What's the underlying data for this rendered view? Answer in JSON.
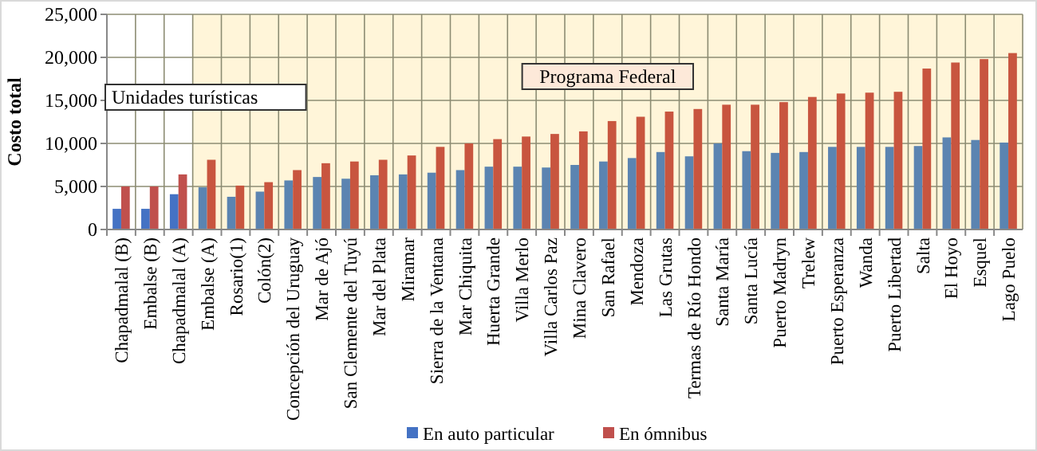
{
  "chart_data": {
    "type": "bar",
    "ylabel": "Costo total",
    "categories": [
      "Chapadmalal (B)",
      "Embalse (B)",
      "Chapadmalal (A)",
      "Embalse (A)",
      "Rosario(1)",
      "Colón(2)",
      "Concepción del Uruguay",
      "Mar de Ajó",
      "San Clemente del Tuyú",
      "Mar del Plata",
      "Miramar",
      "Sierra de la Ventana",
      "Mar Chiquita",
      "Huerta Grande",
      "Villa Merlo",
      "Villa Carlos Paz",
      "Mina Clavero",
      "San Rafael",
      "Mendoza",
      "Las Grutas",
      "Termas de Río Hondo",
      "Santa María",
      "Santa Lucía",
      "Puerto Madryn",
      "Trelew",
      "Puerto Esperanza",
      "Wanda",
      "Puerto Libertad",
      "Salta",
      "El Hoyo",
      "Esquel",
      "Lago Puelo"
    ],
    "series": [
      {
        "name": "En auto particular",
        "color": "#4472c4",
        "colors": [
          "#4472c4",
          "#4472c4",
          "#4472c4",
          "#5b84b1",
          "#5b84b1",
          "#5b84b1",
          "#5b84b1",
          "#5b84b1",
          "#5b84b1",
          "#5b84b1",
          "#5b84b1",
          "#5b84b1",
          "#5b84b1",
          "#5b84b1",
          "#5b84b1",
          "#5b84b1",
          "#5b84b1",
          "#5b84b1",
          "#5b84b1",
          "#5b84b1",
          "#5b84b1",
          "#5b84b1",
          "#5b84b1",
          "#5b84b1",
          "#5b84b1",
          "#5b84b1",
          "#5b84b1",
          "#5b84b1",
          "#5b84b1",
          "#5b84b1",
          "#5b84b1",
          "#5b84b1"
        ],
        "values": [
          2400,
          2400,
          4100,
          4900,
          3800,
          4400,
          5700,
          6100,
          5900,
          6300,
          6400,
          6600,
          6900,
          7300,
          7300,
          7200,
          7500,
          7900,
          8300,
          9000,
          8500,
          10000,
          9100,
          8900,
          9000,
          9600,
          9600,
          9600,
          9700,
          10700,
          10400,
          10100
        ]
      },
      {
        "name": "En ómnibus",
        "color": "#c0504d",
        "colors": [
          "#c0504d",
          "#c0504d",
          "#c0504d",
          "#c8553f",
          "#c8553f",
          "#c8553f",
          "#c8553f",
          "#c8553f",
          "#c8553f",
          "#c8553f",
          "#c8553f",
          "#c8553f",
          "#c8553f",
          "#c8553f",
          "#c8553f",
          "#c8553f",
          "#c8553f",
          "#c8553f",
          "#c8553f",
          "#c8553f",
          "#c8553f",
          "#c8553f",
          "#c8553f",
          "#c8553f",
          "#c8553f",
          "#c8553f",
          "#c8553f",
          "#c8553f",
          "#c8553f",
          "#c8553f",
          "#c8553f",
          "#c8553f"
        ],
        "values": [
          5000,
          5000,
          6400,
          8100,
          5100,
          5500,
          6900,
          7700,
          7900,
          8100,
          8600,
          9600,
          10000,
          10500,
          10800,
          11100,
          11400,
          12600,
          13100,
          13700,
          14000,
          14500,
          14500,
          14800,
          15400,
          15800,
          15900,
          16000,
          18700,
          19400,
          19800,
          20500
        ]
      }
    ],
    "ylim": [
      0,
      25000
    ],
    "yticks": [
      {
        "value": 0,
        "label": "0"
      },
      {
        "value": 5000,
        "label": "5,000"
      },
      {
        "value": 10000,
        "label": "10,000"
      },
      {
        "value": 15000,
        "label": "15,000"
      },
      {
        "value": 20000,
        "label": "20,000"
      },
      {
        "value": 25000,
        "label": "25,000"
      }
    ],
    "grid": true,
    "legend": "bottom",
    "annotations": [
      "Unidades turísticas"
    ],
    "bands": [
      {
        "axis": "x",
        "from": "Embalse (A)",
        "to": "Lago Puelo",
        "label": "Programa Federal",
        "color": "#fff5d9"
      }
    ]
  }
}
